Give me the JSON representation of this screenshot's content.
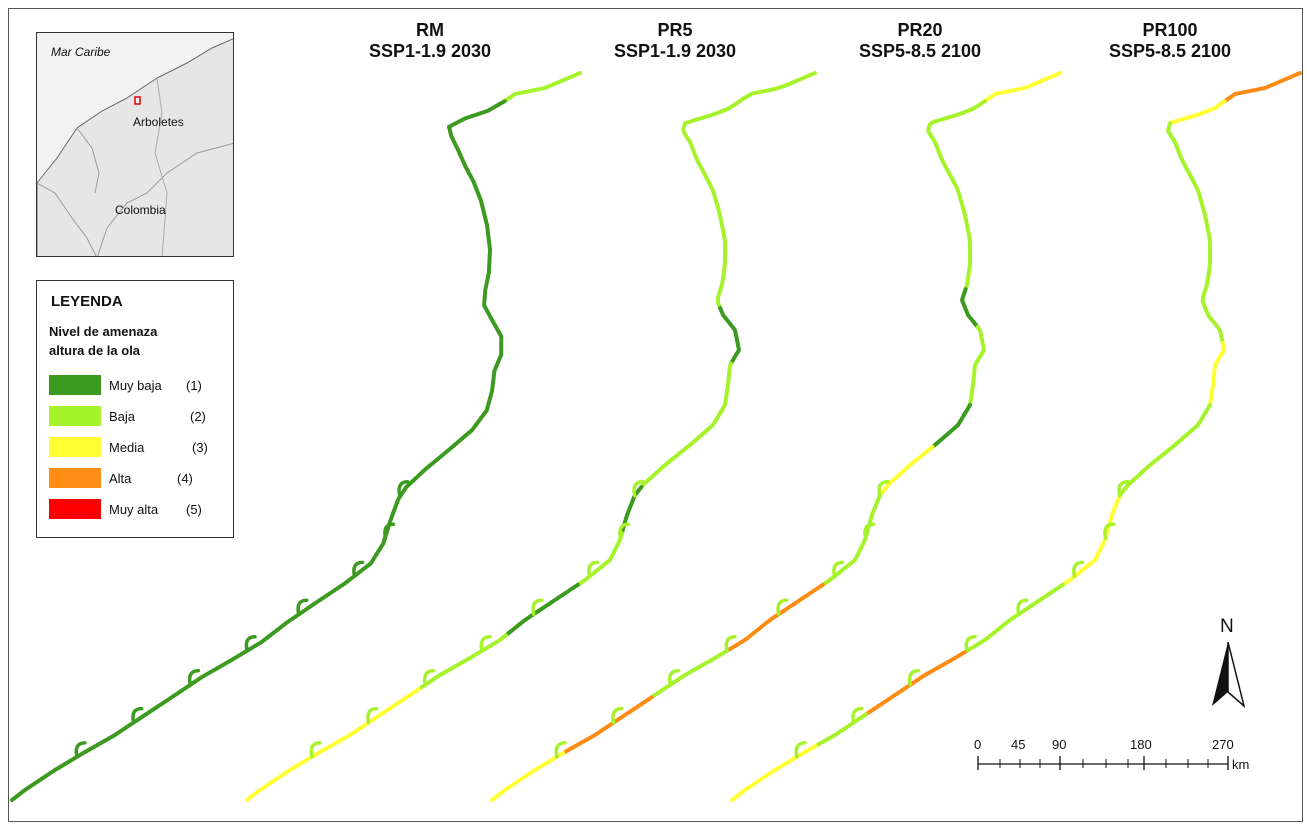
{
  "inset": {
    "sea_label": "Mar Caribe",
    "town_label": "Arboletes",
    "country_label": "Colombia"
  },
  "legend": {
    "title": "LEYENDA",
    "subtitle_line1": "Nivel de amenaza",
    "subtitle_line2": "altura de la ola",
    "items": [
      {
        "label": "Muy baja",
        "code": "(1)",
        "color": "#3b9a1f"
      },
      {
        "label": "Baja",
        "code": "(2)",
        "color": "#a6f22b"
      },
      {
        "label": "Media",
        "code": "(3)",
        "color": "#ffff33"
      },
      {
        "label": "Alta",
        "code": "(4)",
        "color": "#ff8c14"
      },
      {
        "label": "Muy alta",
        "code": "(5)",
        "color": "#ff0000"
      }
    ]
  },
  "panels": [
    {
      "name": "RM",
      "scenario": "SSP1-1.9 2030"
    },
    {
      "name": "PR5",
      "scenario": "SSP1-1.9 2030"
    },
    {
      "name": "PR20",
      "scenario": "SSP5-8.5 2100"
    },
    {
      "name": "PR100",
      "scenario": "SSP5-8.5 2100"
    }
  ],
  "north_arrow": {
    "letter": "N"
  },
  "scale_bar": {
    "ticks": [
      "0",
      "45",
      "90",
      "180",
      "270"
    ],
    "unit": "km"
  }
}
